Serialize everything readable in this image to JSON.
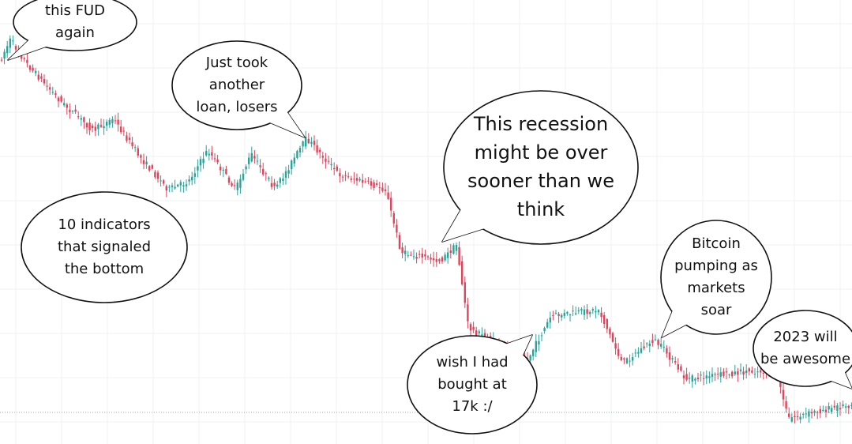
{
  "bubbles": [
    {
      "lines": [
        "this FUD",
        "again"
      ]
    },
    {
      "lines": [
        "Just took",
        "another",
        "loan, losers"
      ]
    },
    {
      "lines": [
        "10 indicators",
        "that signaled",
        "the bottom"
      ]
    },
    {
      "lines": [
        "This recession",
        "might be over",
        "sooner than we",
        "think"
      ]
    },
    {
      "lines": [
        "wish I had",
        "bought at",
        "17k :/"
      ]
    },
    {
      "lines": [
        "Bitcoin",
        "pumping as",
        "markets",
        "soar"
      ]
    },
    {
      "lines": [
        "2023 will",
        "be awesome"
      ]
    }
  ]
}
